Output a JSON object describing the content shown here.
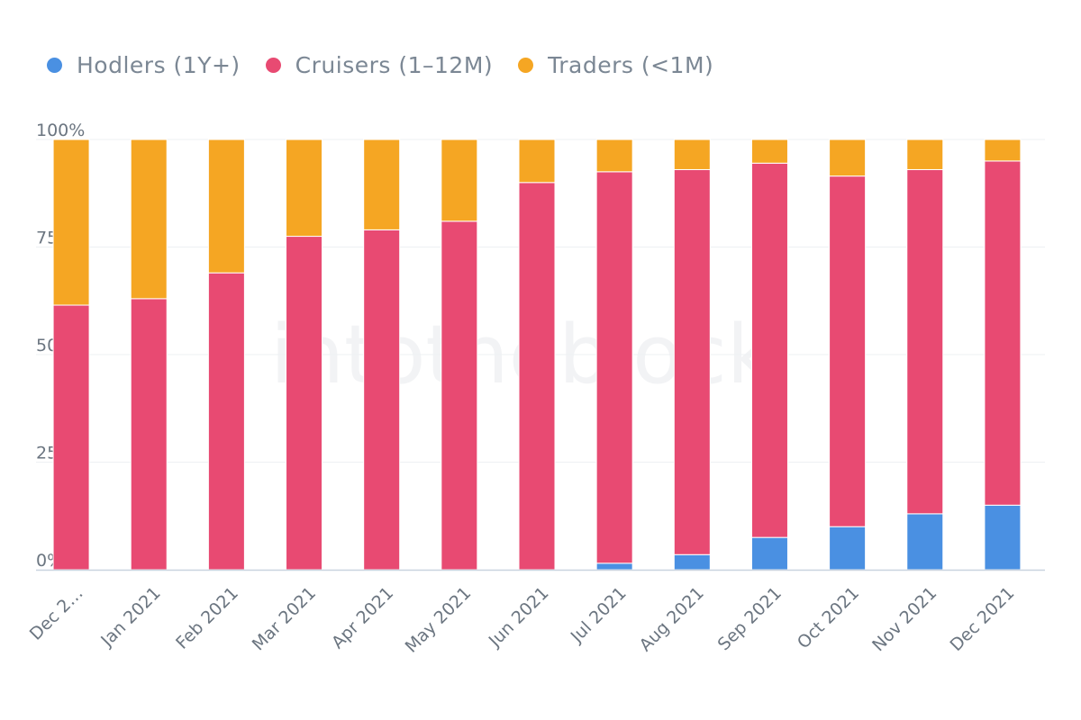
{
  "legend": [
    {
      "label": "Hodlers (1Y+)",
      "color": "#4a90e2"
    },
    {
      "label": "Cruisers (1–12M)",
      "color": "#e84a72"
    },
    {
      "label": "Traders (<1M)",
      "color": "#f5a623"
    }
  ],
  "watermark": "intotheblock",
  "chart_data": {
    "type": "bar",
    "stacked": true,
    "normalized": true,
    "categories": [
      "Dec 2…",
      "Jan 2021",
      "Feb 2021",
      "Mar 2021",
      "Apr 2021",
      "May 2021",
      "Jun 2021",
      "Jul 2021",
      "Aug 2021",
      "Sep 2021",
      "Oct 2021",
      "Nov 2021",
      "Dec 2021"
    ],
    "series": [
      {
        "name": "Hodlers (1Y+)",
        "color": "#4a90e2",
        "values": [
          0,
          0,
          0,
          0,
          0,
          0,
          0,
          1.5,
          3.5,
          7.5,
          10,
          13,
          15
        ]
      },
      {
        "name": "Cruisers (1–12M)",
        "color": "#e84a72",
        "values": [
          61.5,
          63,
          69,
          77.5,
          79,
          81,
          90,
          91,
          89.5,
          87,
          81.5,
          80,
          80
        ]
      },
      {
        "name": "Traders (<1M)",
        "color": "#f5a623",
        "values": [
          38.5,
          37,
          31,
          22.5,
          21,
          19,
          10,
          7.5,
          7,
          5.5,
          8.5,
          7,
          5
        ]
      }
    ],
    "yticks": [
      "0%",
      "25%",
      "50%",
      "75%",
      "100%"
    ],
    "ylim": [
      0,
      100
    ],
    "grid": true,
    "legend_position": "top-left"
  }
}
